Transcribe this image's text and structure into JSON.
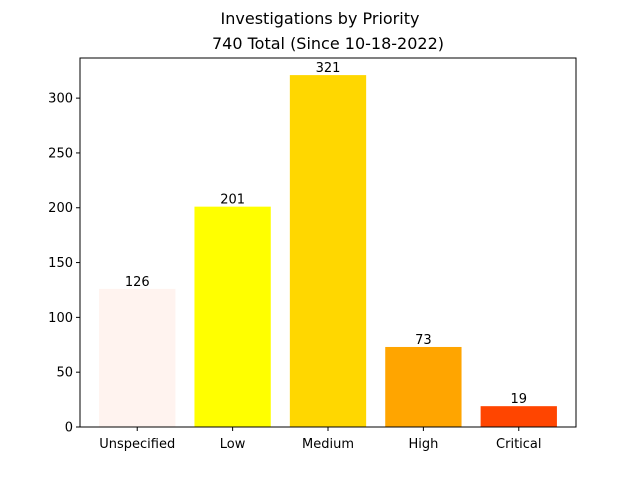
{
  "chart_data": {
    "type": "bar",
    "title": "Investigations by Priority",
    "subtitle": "740 Total (Since 10-18-2022)",
    "xlabel": "",
    "ylabel": "",
    "categories": [
      "Unspecified",
      "Low",
      "Medium",
      "High",
      "Critical"
    ],
    "values": [
      126,
      201,
      321,
      73,
      19
    ],
    "colors": [
      "#fff3ef",
      "#ffff00",
      "#ffd700",
      "#ffa500",
      "#ff4500"
    ],
    "ylim": [
      0,
      336.6
    ],
    "yticks": [
      0,
      50,
      100,
      150,
      200,
      250,
      300
    ],
    "grid": false,
    "legend": "none"
  }
}
